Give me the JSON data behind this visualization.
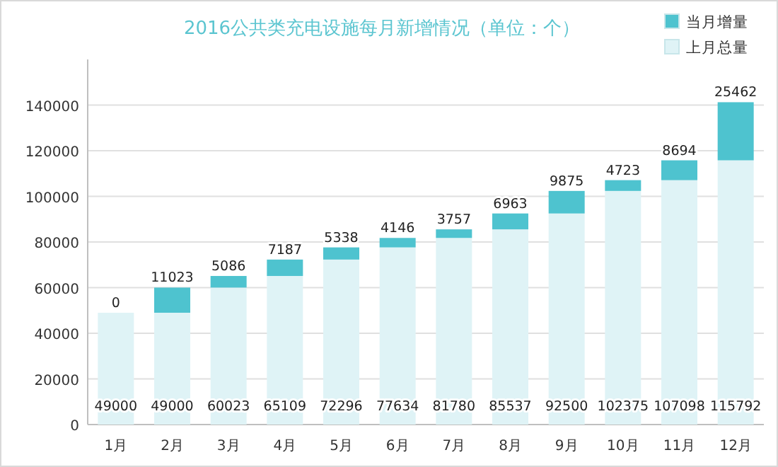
{
  "chart_data": {
    "type": "bar",
    "title": "2016公共类充电设施每月新增情况（单位：个）",
    "categories": [
      "1月",
      "2月",
      "3月",
      "4月",
      "5月",
      "6月",
      "7月",
      "8月",
      "9月",
      "10月",
      "11月",
      "12月"
    ],
    "stacked": true,
    "series": [
      {
        "name": "上月总量",
        "color": "#dff3f6",
        "values": [
          49000,
          49000,
          60023,
          65109,
          72296,
          77634,
          81780,
          85537,
          92500,
          102375,
          107098,
          115792
        ]
      },
      {
        "name": "当月增量",
        "color": "#4ec3cf",
        "values": [
          0,
          11023,
          5086,
          7187,
          5338,
          4146,
          3757,
          6963,
          9875,
          4723,
          8694,
          25462
        ]
      }
    ],
    "ylim": [
      0,
      160000
    ],
    "yticks": [
      0,
      20000,
      40000,
      60000,
      80000,
      100000,
      120000,
      140000
    ],
    "grid": "y",
    "legend": "top right",
    "data_labels": true
  }
}
